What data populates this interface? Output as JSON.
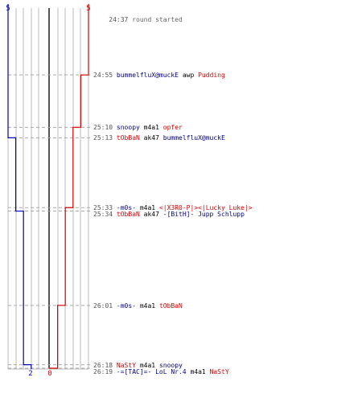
{
  "chart_data": {
    "type": "line",
    "title": "",
    "start_label": {
      "time": "24:37",
      "text": "round started"
    },
    "top_scores": {
      "blue": "5",
      "red": "5"
    },
    "bottom_scores": {
      "blue": "2",
      "red": "0"
    },
    "colors": {
      "blue": "#0000bb",
      "red": "#dd0000",
      "grid": "#bbbbbb",
      "center": "#555555",
      "dash": "#aaaaaa"
    },
    "team_scale_max": 5,
    "series": [
      {
        "team": "blue",
        "values_over_time": [
          {
            "time": "24:37",
            "players": 5
          },
          {
            "time": "25:13",
            "players": 4
          },
          {
            "time": "25:34",
            "players": 3
          },
          {
            "time": "26:18",
            "players": 2
          }
        ]
      },
      {
        "team": "red",
        "values_over_time": [
          {
            "time": "24:37",
            "players": 5
          },
          {
            "time": "24:55",
            "players": 4
          },
          {
            "time": "25:10",
            "players": 3
          },
          {
            "time": "25:33",
            "players": 2
          },
          {
            "time": "26:01",
            "players": 1
          },
          {
            "time": "26:19",
            "players": 0
          }
        ]
      }
    ],
    "events": [
      {
        "time": "24:55",
        "killer": "bummelfluX@muckE",
        "killer_team": "blue",
        "weapon": "awp",
        "victim": "Pudding",
        "victim_team": "red"
      },
      {
        "time": "25:10",
        "killer": "snoopy",
        "killer_team": "blue",
        "weapon": "m4a1",
        "victim": "opfer",
        "victim_team": "red"
      },
      {
        "time": "25:13",
        "killer": "tObBaN",
        "killer_team": "red",
        "weapon": "ak47",
        "victim": "bummelfluX@muckE",
        "victim_team": "blue"
      },
      {
        "time": "25:33",
        "killer": "-m0s-",
        "killer_team": "blue",
        "weapon": "m4a1",
        "victim": "<|X3R0-P|><|Lucky Luke|>",
        "victim_team": "red"
      },
      {
        "time": "25:34",
        "killer": "tObBaN",
        "killer_team": "red",
        "weapon": "ak47",
        "victim": "-[BitH]- Jupp Schlupp",
        "victim_team": "blue"
      },
      {
        "time": "26:01",
        "killer": "-m0s-",
        "killer_team": "blue",
        "weapon": "m4a1",
        "victim": "tObBaN",
        "victim_team": "red"
      },
      {
        "time": "26:18",
        "killer": "NaStY",
        "killer_team": "red",
        "weapon": "m4a1",
        "victim": "snoopy",
        "victim_team": "blue"
      },
      {
        "time": "26:19",
        "killer": "-=[TAC]=- LoL Nr.4",
        "killer_team": "blue",
        "weapon": "m4a1",
        "victim": "NaStY",
        "victim_team": "red"
      }
    ]
  }
}
